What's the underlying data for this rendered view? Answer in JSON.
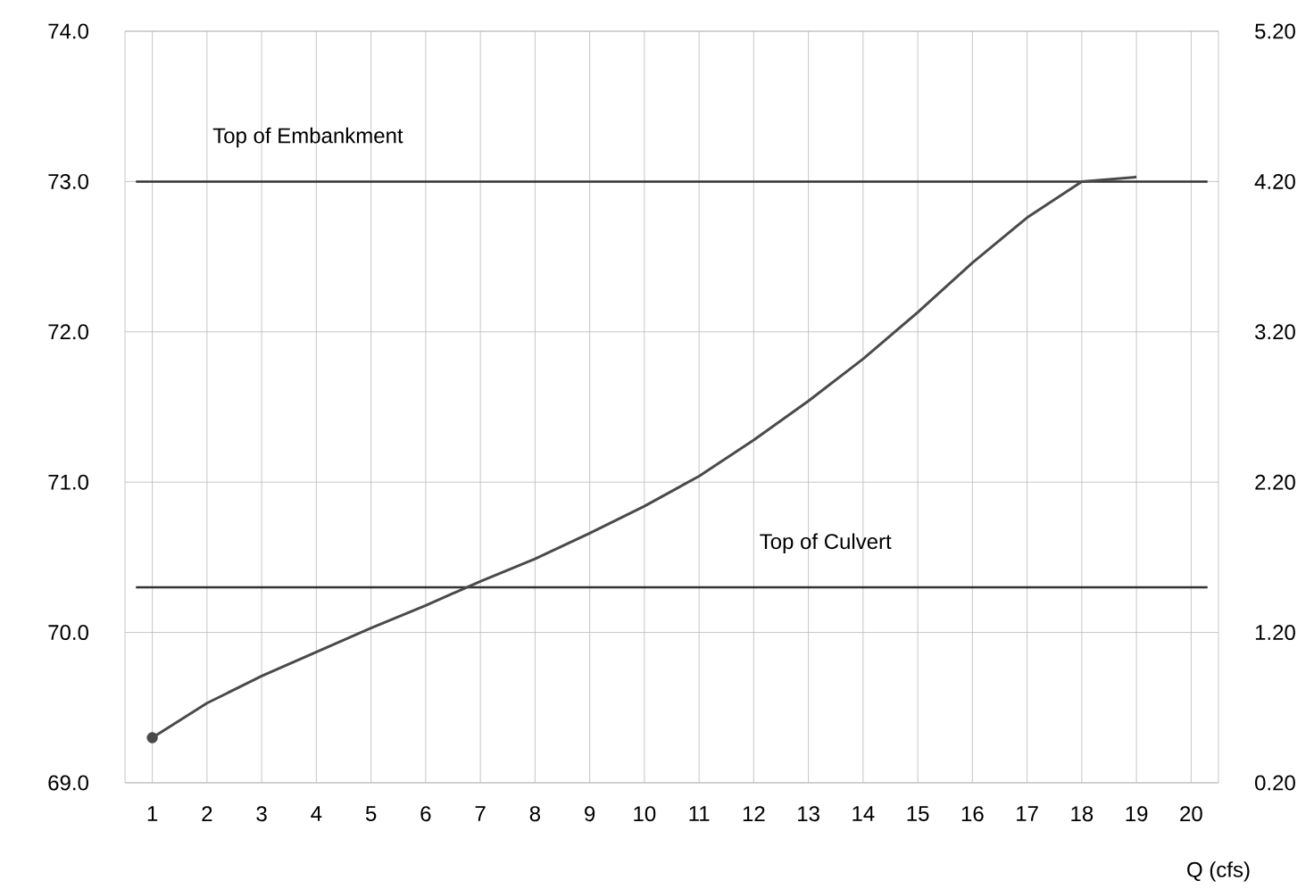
{
  "chart_data": {
    "type": "line",
    "xlabel": "Q (cfs)",
    "series": [
      {
        "color": "#4a4a4a",
        "x": [
          1,
          2,
          3,
          4,
          5,
          6,
          7,
          8,
          9,
          10,
          11,
          12,
          13,
          14,
          15,
          16,
          17,
          18,
          19
        ],
        "values": [
          69.3,
          69.53,
          69.71,
          69.87,
          70.03,
          70.18,
          70.34,
          70.49,
          70.66,
          70.84,
          71.04,
          71.28,
          71.54,
          71.82,
          72.13,
          72.46,
          72.76,
          73.0,
          73.03
        ]
      },
      {
        "type": "scatter",
        "color": "#4a4a4a",
        "x": [
          1
        ],
        "values": [
          69.3
        ]
      }
    ],
    "xlim": [
      0.5,
      20.5
    ],
    "xticks": [
      1,
      2,
      3,
      4,
      5,
      6,
      7,
      8,
      9,
      10,
      11,
      12,
      13,
      14,
      15,
      16,
      17,
      18,
      19,
      20
    ],
    "ylim": [
      69,
      74
    ],
    "yticks": [
      {
        "value": 69,
        "label": "69.0"
      },
      {
        "value": 70,
        "label": "70.0"
      },
      {
        "value": 71,
        "label": "71.0"
      },
      {
        "value": 72,
        "label": "72.0"
      },
      {
        "value": 73,
        "label": "73.0"
      },
      {
        "value": 74,
        "label": "74.0"
      }
    ],
    "y2lim": [
      0.2,
      5.2
    ],
    "y2ticks": [
      {
        "value": 0.2,
        "label": "0.20"
      },
      {
        "value": 1.2,
        "label": "1.20"
      },
      {
        "value": 2.2,
        "label": "2.20"
      },
      {
        "value": 3.2,
        "label": "3.20"
      },
      {
        "value": 4.2,
        "label": "4.20"
      },
      {
        "value": 5.2,
        "label": "5.20"
      }
    ],
    "ref_lines": [
      {
        "axis": "y",
        "value": 73.0,
        "label": "Top of Embankment",
        "color": "#333333"
      },
      {
        "axis": "y",
        "value": 70.3,
        "label": "Top of Culvert",
        "color": "#333333"
      }
    ],
    "grid": true
  }
}
